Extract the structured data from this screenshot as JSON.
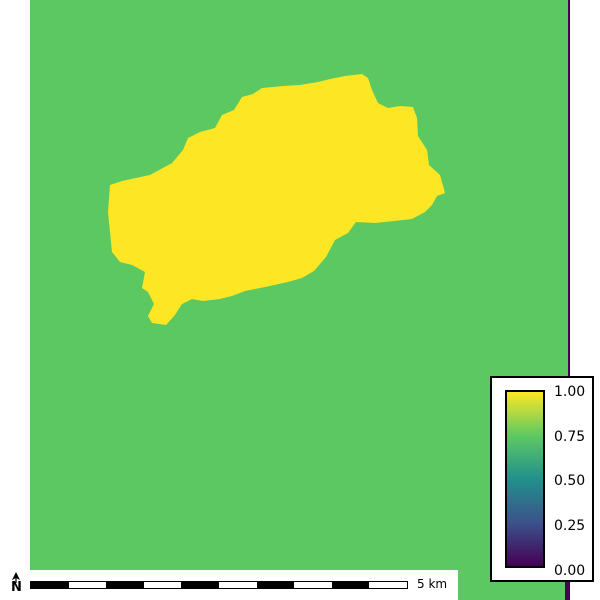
{
  "map": {
    "background_color": "#5bc862",
    "catchment_color": "#fde725",
    "edge_color": "#440154",
    "catchment_value": 1.0,
    "background_value": 0.75
  },
  "legend": {
    "colormap": "viridis",
    "gradient": [
      "#440154",
      "#3b528b",
      "#21918c",
      "#5ec962",
      "#fde725"
    ],
    "ticks": [
      "1.00",
      "0.75",
      "0.50",
      "0.25",
      "0.00"
    ]
  },
  "scale_bar": {
    "label": "5 km",
    "segments": 10
  },
  "north_arrow": {
    "letter": "N"
  }
}
